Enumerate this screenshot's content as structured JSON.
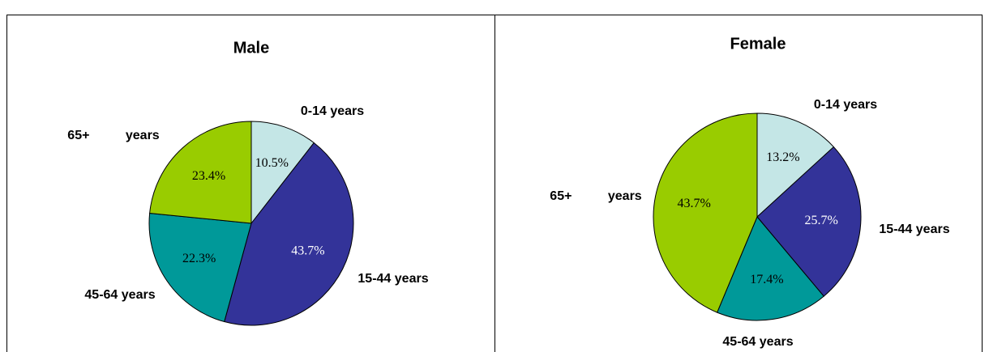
{
  "chart_data": [
    {
      "type": "pie",
      "title": "Male",
      "categories": [
        "0-14 years",
        "15-44 years",
        "45-64 years",
        "65+ years"
      ],
      "values": [
        10.5,
        43.7,
        22.3,
        23.4
      ],
      "value_labels": [
        "10.5%",
        "43.7%",
        "22.3%",
        "23.4%"
      ],
      "colors": [
        "#c4e6e6",
        "#333399",
        "#009999",
        "#99cc00"
      ]
    },
    {
      "type": "pie",
      "title": "Female",
      "categories": [
        "0-14 years",
        "15-44 years",
        "45-64 years",
        "65+ years"
      ],
      "values": [
        13.2,
        25.7,
        17.4,
        43.7
      ],
      "value_labels": [
        "13.2%",
        "25.7%",
        "17.4%",
        "43.7%"
      ],
      "colors": [
        "#c4e6e6",
        "#333399",
        "#009999",
        "#99cc00"
      ]
    }
  ]
}
